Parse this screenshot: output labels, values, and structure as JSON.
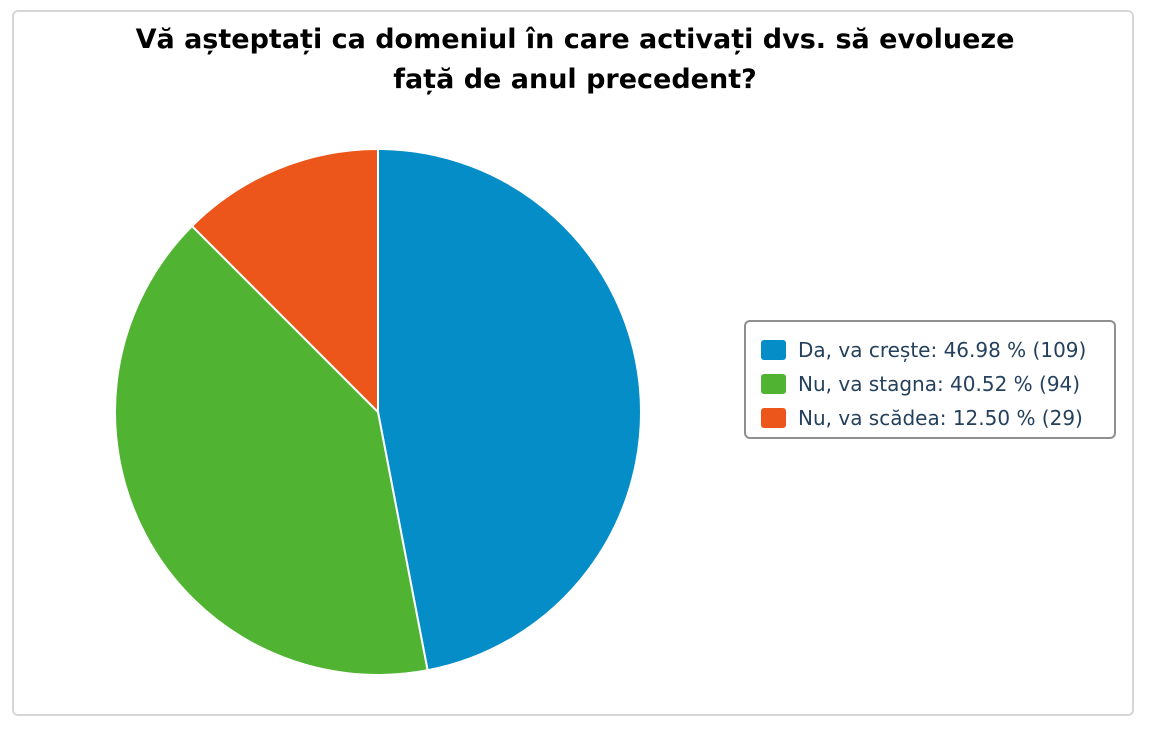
{
  "chart_data": {
    "type": "pie",
    "title_lines": [
      "Vă așteptați ca domeniul în care activați dvs. să evolueze",
      "față de anul precedent?"
    ],
    "slices": [
      {
        "label": "Da, va crește",
        "percent": 46.98,
        "count": 109,
        "color": "#058dc7",
        "legend_text": "Da, va crește: 46.98 % (109)"
      },
      {
        "label": "Nu, va stagna",
        "percent": 40.52,
        "count": 94,
        "color": "#50b432",
        "legend_text": "Nu, va stagna: 40.52 % (94)"
      },
      {
        "label": "Nu, va scădea",
        "percent": 12.5,
        "count": 29,
        "color": "#ed561b",
        "legend_text": "Nu, va scădea: 12.50 % (29)"
      }
    ],
    "start_angle": "12 o'clock, clockwise",
    "legend_position": "right"
  }
}
